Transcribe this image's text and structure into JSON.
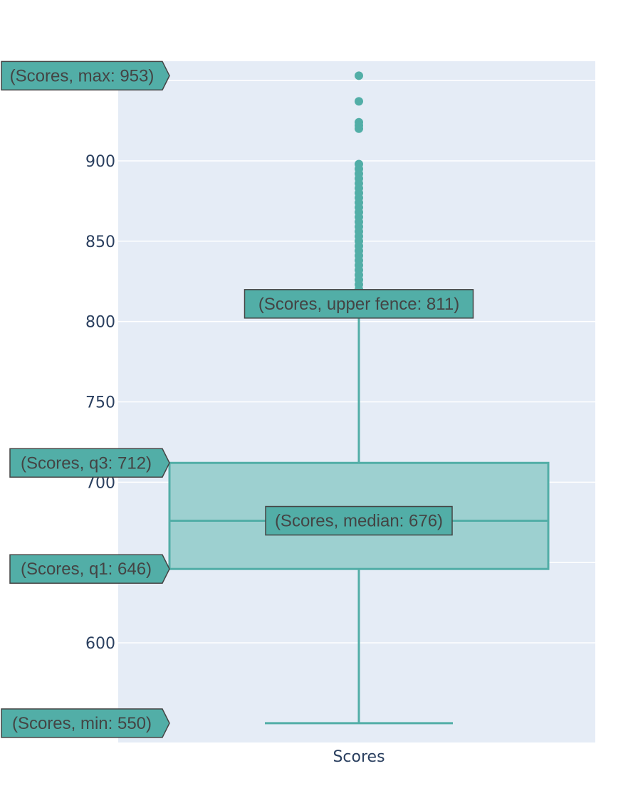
{
  "chart_data": {
    "type": "box",
    "xlabel": "",
    "ylabel": "",
    "categories": [
      "Scores"
    ],
    "ylim": [
      538,
      962
    ],
    "yticks": [
      600,
      650,
      700,
      750,
      800,
      850,
      900,
      950
    ],
    "ytick_labels": [
      "600",
      "",
      "700",
      "750",
      "800",
      "850",
      "900",
      ""
    ],
    "grid": true,
    "series": [
      {
        "category": "Scores",
        "stats": {
          "min": 550,
          "q1": 646,
          "median": 676,
          "q3": 712,
          "upper_fence": 811,
          "max": 953
        },
        "outliers": [
          953,
          937,
          924,
          922,
          920,
          898,
          895,
          892,
          889,
          886,
          883,
          880,
          877,
          874,
          871,
          868,
          865,
          862,
          859,
          856,
          853,
          850,
          847,
          844,
          841,
          838,
          835,
          832,
          829,
          826,
          823,
          820
        ],
        "color": "#52aea7"
      }
    ],
    "annotations": [
      {
        "key": "max",
        "text": "(Scores, max: 953)",
        "side": "left"
      },
      {
        "key": "upper_fence",
        "text": "(Scores, upper fence: 811)",
        "side": "center"
      },
      {
        "key": "q3",
        "text": "(Scores, q3: 712)",
        "side": "left"
      },
      {
        "key": "median",
        "text": "(Scores, median: 676)",
        "side": "center"
      },
      {
        "key": "q1",
        "text": "(Scores, q1: 646)",
        "side": "left"
      },
      {
        "key": "min",
        "text": "(Scores, min: 550)",
        "side": "left"
      }
    ]
  },
  "colors": {
    "plot_bg": "#e5ecf6",
    "grid": "#ffffff",
    "box_line": "#52aea7",
    "box_fill": "#9dd0d0",
    "label_bg": "#52aea7",
    "label_border": "#444444",
    "tick_text": "#2a3f5f"
  }
}
